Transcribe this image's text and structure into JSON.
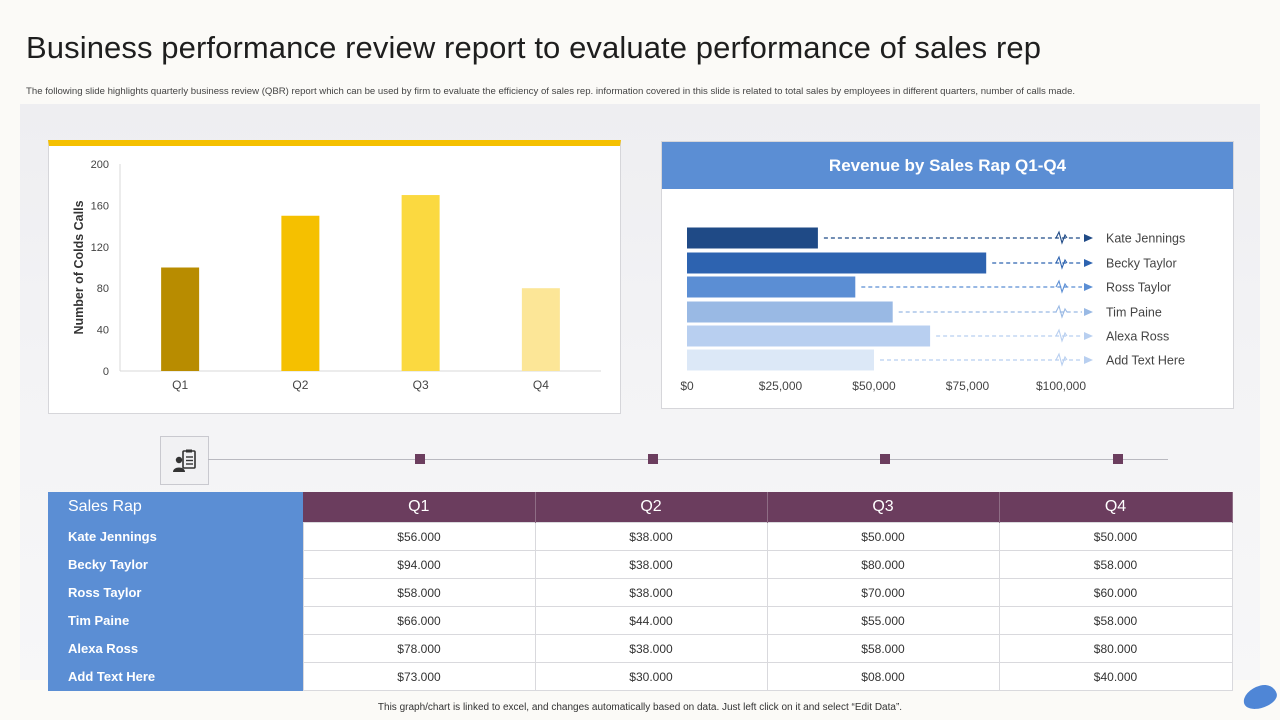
{
  "page": {
    "title": "Business performance review report to evaluate performance of sales rep",
    "subtitle": "The following slide highlights quarterly business review (QBR) report which can be used by firm to evaluate the efficiency of sales rep. information covered in this slide is related to total sales by employees in different quarters, number of calls made.",
    "footer": "This graph/chart is linked to excel, and changes automatically based on data. Just left click on it and select “Edit Data”."
  },
  "chart_data": [
    {
      "type": "bar",
      "title": "",
      "categories": [
        "Q1",
        "Q2",
        "Q3",
        "Q4"
      ],
      "values": [
        100,
        150,
        170,
        80
      ],
      "xlabel": "",
      "ylabel": "Number of Colds Calls",
      "ylim": [
        0,
        200
      ],
      "yticks": [
        0,
        40,
        80,
        120,
        160,
        200
      ],
      "colors": [
        "#b88c00",
        "#f5c000",
        "#fbd940",
        "#fce697"
      ],
      "grid": false
    },
    {
      "type": "bar",
      "orientation": "horizontal",
      "title": "Revenue by Sales Rap Q1-Q4",
      "categories": [
        "Kate Jennings",
        "Becky Taylor",
        "Ross Taylor",
        "Tim Paine",
        "Alexa Ross",
        "Add Text Here"
      ],
      "values": [
        35000,
        80000,
        45000,
        55000,
        65000,
        50000
      ],
      "xlim": [
        0,
        100000
      ],
      "xticks": [
        "$0",
        "$25,000",
        "$50,000",
        "$75,000",
        "$100,000"
      ],
      "xtick_values": [
        0,
        25000,
        50000,
        75000,
        100000
      ],
      "colors": [
        "#1f4a86",
        "#2d63b0",
        "#5b8ed4",
        "#99b9e4",
        "#b8cff0",
        "#dce8f7"
      ],
      "grid": false
    }
  ],
  "table": {
    "header": [
      "Sales Rap",
      "Q1",
      "Q2",
      "Q3",
      "Q4"
    ],
    "rows": [
      {
        "rep": "Kate Jennings",
        "q": [
          "$56.000",
          "$38.000",
          "$50.000",
          "$50.000"
        ]
      },
      {
        "rep": "Becky Taylor",
        "q": [
          "$94.000",
          "$38.000",
          "$80.000",
          "$58.000"
        ]
      },
      {
        "rep": "Ross Taylor",
        "q": [
          "$58.000",
          "$38.000",
          "$70.000",
          "$60.000"
        ]
      },
      {
        "rep": "Tim Paine",
        "q": [
          "$66.000",
          "$44.000",
          "$55.000",
          "$58.000"
        ]
      },
      {
        "rep": "Alexa Ross",
        "q": [
          "$78.000",
          "$38.000",
          "$58.000",
          "$80.000"
        ]
      },
      {
        "rep": "Add Text Here",
        "q": [
          "$73.000",
          "$30.000",
          "$08.000",
          "$40.000"
        ]
      }
    ]
  },
  "icons": {
    "timeline": "report-clipboard-icon"
  }
}
